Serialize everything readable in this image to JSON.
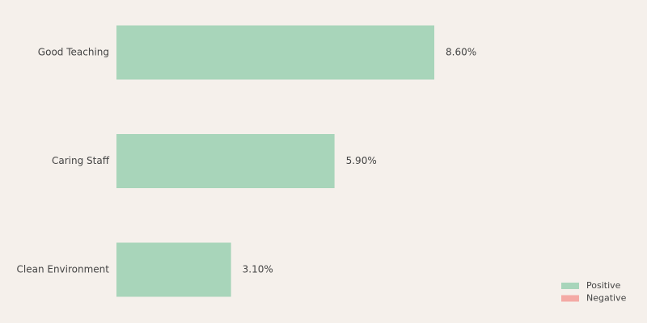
{
  "chart_data": {
    "type": "bar",
    "orientation": "horizontal",
    "categories": [
      "Good Teaching",
      "Caring Staff",
      "Clean Environment"
    ],
    "series": [
      {
        "name": "Positive",
        "color": "#a8d5ba",
        "values": [
          8.6,
          5.9,
          3.1
        ],
        "value_labels": [
          "8.60%",
          "5.90%",
          "3.10%"
        ]
      },
      {
        "name": "Negative",
        "color": "#f4aaa5",
        "values": [
          null,
          null,
          null
        ]
      }
    ],
    "legend": "lower right"
  }
}
